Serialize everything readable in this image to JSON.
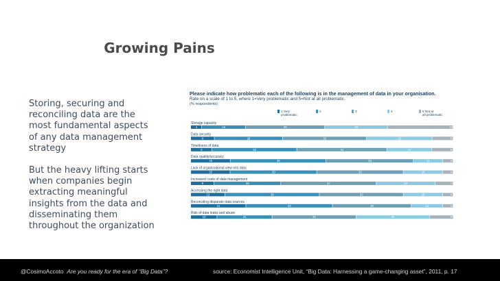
{
  "slide": {
    "title": "Growing Pains",
    "bullets": [
      "Storing, securing and reconciling data are the most fundamental aspects of any data management strategy",
      "But the heavy lifting starts when companies begin extracting meaningful insights from the data and disseminating them throughout the organization"
    ]
  },
  "footer": {
    "author": "@CosimoAccoto",
    "talk": "Are you ready for the era of “Big Data”?",
    "source": "source:  Economist Intelligence Unit, “Big Data: Harnessing a game-changing asset”, 2011, p. 17"
  },
  "chart_data": {
    "type": "bar",
    "stacked": true,
    "orientation": "horizontal",
    "title": "Please indicate how problematic each of the following is in the management of data in your organisation.",
    "subtitle": "Rate on a scale of 1 to 5, where 1=Very problematic and 5=Not at all problematic.",
    "note": "(% respondents)",
    "legend_position": "top",
    "categories": [
      "Storage capacity",
      "Data security",
      "Timeliness of data",
      "Data quality/accuracy",
      "Lack of organisational view into data",
      "Increased costs of data management",
      "Accessing the right data",
      "Reconciling disparate data sources",
      "Risk of data leaks and abuse"
    ],
    "series": [
      {
        "name": "1 Very problematic",
        "color": "#1f6e9e",
        "values": [
          4,
          9,
          8,
          15,
          15,
          9,
          13,
          21,
          10
        ]
      },
      {
        "name": "2",
        "color": "#3a8fb9",
        "values": [
          16,
          26,
          32,
          36,
          33,
          26,
          36,
          33,
          21
        ]
      },
      {
        "name": "3",
        "color": "#6f9fb4",
        "values": [
          29,
          32,
          34,
          33,
          33,
          37,
          32,
          30,
          32
        ]
      },
      {
        "name": "4",
        "color": "#8cc9e2",
        "values": [
          23,
          25,
          17,
          11,
          15,
          23,
          15,
          12,
          28
        ]
      },
      {
        "name": "5 Not at all problematic",
        "color": "#a7b3ba",
        "values": [
          24,
          8,
          8,
          4,
          4,
          7,
          4,
          4,
          9
        ]
      }
    ]
  }
}
